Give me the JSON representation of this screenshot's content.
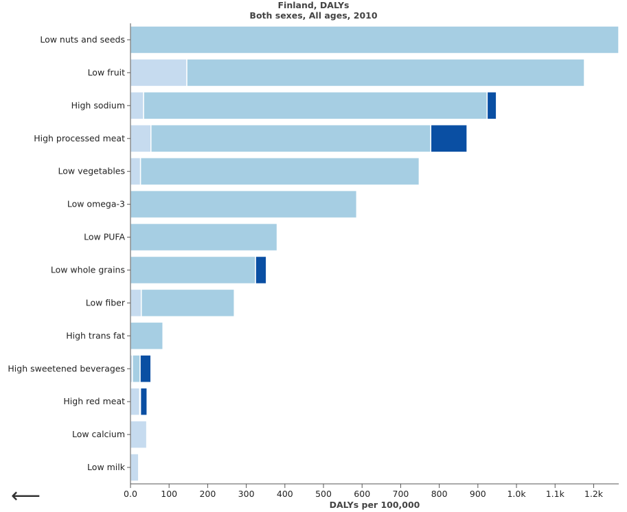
{
  "header": {
    "title": "Finland, DALYs",
    "subtitle": "Both sexes, All ages, 2010"
  },
  "nav": {
    "back_icon": "left-arrow-icon",
    "back_glyph": "⟵"
  },
  "colors": {
    "segment_light": "#c6dbef",
    "segment_mid": "#a6cee3",
    "segment_dark": "#0a4fa3",
    "axis": "#555555"
  },
  "chart_data": {
    "type": "bar",
    "orientation": "horizontal",
    "stacked": true,
    "title": "Finland, DALYs",
    "subtitle": "Both sexes, All ages, 2010",
    "xlabel": "DALYs per 100,000",
    "ylabel": "",
    "xlim": [
      0,
      1265
    ],
    "x_ticks": [
      0,
      100,
      200,
      300,
      400,
      500,
      600,
      700,
      800,
      900,
      1000,
      1100,
      1200
    ],
    "x_tick_labels": [
      "0.0",
      "100",
      "200",
      "300",
      "400",
      "500",
      "600",
      "700",
      "800",
      "900",
      "1.0k",
      "1.1k",
      "1.2k"
    ],
    "grid": false,
    "legend": "none",
    "categories": [
      "Low nuts and seeds",
      "Low fruit",
      "High sodium",
      "High processed meat",
      "Low vegetables",
      "Low omega-3",
      "Low PUFA",
      "Low whole grains",
      "Low fiber",
      "High trans fat",
      "High sweetened beverages",
      "High red meat",
      "Low calcium",
      "Low milk"
    ],
    "series": [
      {
        "color": "#c6dbef",
        "values": [
          0,
          146,
          34,
          53,
          26,
          0,
          0,
          0,
          28,
          0,
          5,
          24,
          42,
          21
        ]
      },
      {
        "color": "#a6cee3",
        "values": [
          1265,
          1030,
          890,
          725,
          722,
          586,
          380,
          324,
          241,
          84,
          20,
          2,
          0,
          0
        ]
      },
      {
        "color": "#0a4fa3",
        "values": [
          0,
          0,
          24,
          94,
          0,
          0,
          0,
          28,
          0,
          0,
          28,
          17,
          0,
          0
        ]
      }
    ]
  }
}
